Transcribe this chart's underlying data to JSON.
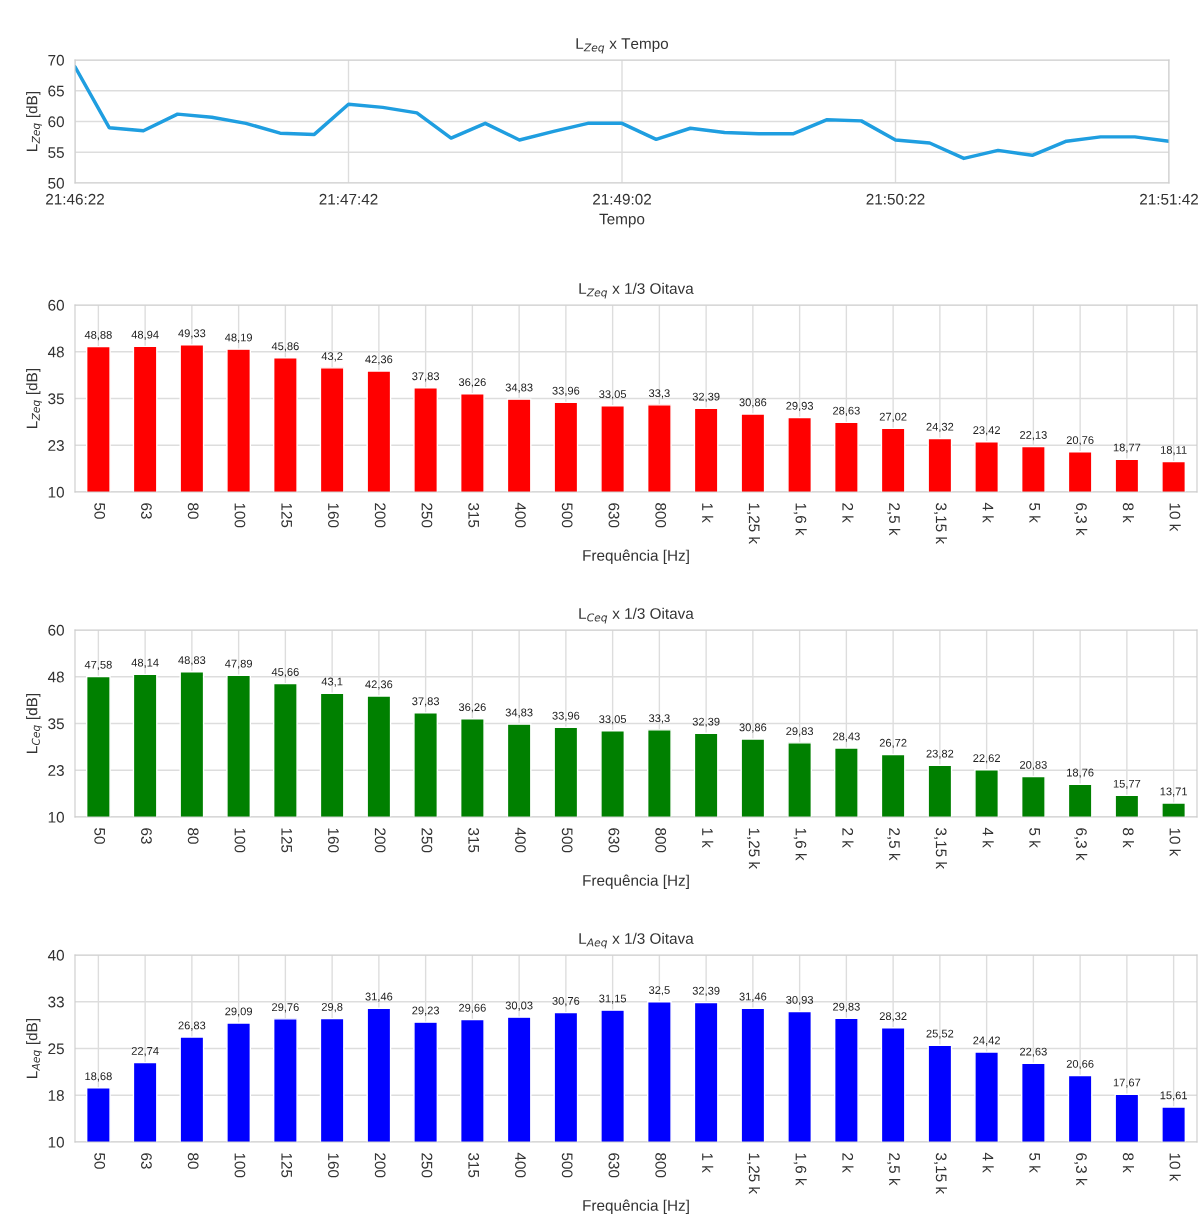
{
  "chart_data": [
    {
      "type": "line",
      "title": "L$_{Zeq}$ x Tempo",
      "xlabel": "Tempo",
      "ylabel": "L$_{Zeq}$ [dB]",
      "x": [
        78382,
        78392,
        78402,
        78412,
        78422,
        78432,
        78442,
        78452,
        78462,
        78472,
        78482,
        78492,
        78502,
        78512,
        78522,
        78532,
        78542,
        78552,
        78562,
        78572,
        78582,
        78592,
        78602,
        78612,
        78622,
        78632,
        78642,
        78652,
        78662,
        78672,
        78682,
        78692,
        78702
      ],
      "series": [
        {
          "color": "#1f9ee0",
          "values": [
            68.9,
            59.0,
            58.5,
            61.2,
            60.7,
            59.7,
            58.1,
            57.9,
            62.8,
            62.3,
            61.4,
            57.3,
            59.7,
            57.0,
            58.4,
            59.7,
            59.7,
            57.1,
            58.9,
            58.2,
            58.0,
            58.0,
            60.3,
            60.1,
            57.0,
            56.5,
            54.0,
            55.3,
            54.5,
            56.8,
            57.5,
            57.5,
            56.8
          ]
        }
      ],
      "xlim": [
        78382,
        78702
      ],
      "xticks": [
        {
          "value": 78382,
          "label": "21:46:22"
        },
        {
          "value": 78462,
          "label": "21:47:42"
        },
        {
          "value": 78542,
          "label": "21:49:02"
        },
        {
          "value": 78622,
          "label": "21:50:22"
        },
        {
          "value": 78702,
          "label": "21:51:42"
        }
      ],
      "ylim": [
        50,
        70
      ],
      "yticks": [
        50,
        55,
        60,
        65,
        70
      ],
      "grid": true,
      "marker": "none",
      "line_style": "solid"
    },
    {
      "type": "bar",
      "title": "L$_{Zeq}$ x 1/3 Oitava",
      "xlabel": "Frequência [Hz]",
      "ylabel": "L$_{Zeq}$ [dB]",
      "categories": [
        "50",
        "63",
        "80",
        "100",
        "125",
        "160",
        "200",
        "250",
        "315",
        "400",
        "500",
        "630",
        "800",
        "1 k",
        "1,25 k",
        "1,6 k",
        "2 k",
        "2,5 k",
        "3,15 k",
        "4 k",
        "5 k",
        "6,3 k",
        "8 k",
        "10 k"
      ],
      "values": [
        48.88,
        48.94,
        49.33,
        48.19,
        45.86,
        43.2,
        42.36,
        37.83,
        36.26,
        34.83,
        33.96,
        33.05,
        33.3,
        32.39,
        30.86,
        29.93,
        28.63,
        27.02,
        24.32,
        23.42,
        22.13,
        20.76,
        18.77,
        18.11
      ],
      "value_labels": [
        "48,88",
        "48,94",
        "49,33",
        "48,19",
        "45,86",
        "43,2",
        "42,36",
        "37,83",
        "36,26",
        "34,83",
        "33,96",
        "33,05",
        "33,3",
        "32,39",
        "30,86",
        "29,93",
        "28,63",
        "27,02",
        "24,32",
        "23,42",
        "22,13",
        "20,76",
        "18,77",
        "18,11"
      ],
      "color": "#ff0000",
      "ylim": [
        10,
        60
      ],
      "yticks": [
        10,
        {
          "value": 22.5,
          "label": "23"
        },
        35,
        {
          "value": 47.5,
          "label": "48"
        },
        60
      ],
      "grid": true
    },
    {
      "type": "bar",
      "title": "L$_{Ceq}$ x 1/3 Oitava",
      "xlabel": "Frequência [Hz]",
      "ylabel": "L$_{Ceq}$ [dB]",
      "categories": [
        "50",
        "63",
        "80",
        "100",
        "125",
        "160",
        "200",
        "250",
        "315",
        "400",
        "500",
        "630",
        "800",
        "1 k",
        "1,25 k",
        "1,6 k",
        "2 k",
        "2,5 k",
        "3,15 k",
        "4 k",
        "5 k",
        "6,3 k",
        "8 k",
        "10 k"
      ],
      "values": [
        47.58,
        48.14,
        48.83,
        47.89,
        45.66,
        43.1,
        42.36,
        37.83,
        36.26,
        34.83,
        33.96,
        33.05,
        33.3,
        32.39,
        30.86,
        29.83,
        28.43,
        26.72,
        23.82,
        22.62,
        20.83,
        18.76,
        15.77,
        13.71
      ],
      "value_labels": [
        "47,58",
        "48,14",
        "48,83",
        "47,89",
        "45,66",
        "43,1",
        "42,36",
        "37,83",
        "36,26",
        "34,83",
        "33,96",
        "33,05",
        "33,3",
        "32,39",
        "30,86",
        "29,83",
        "28,43",
        "26,72",
        "23,82",
        "22,62",
        "20,83",
        "18,76",
        "15,77",
        "13,71"
      ],
      "color": "#008000",
      "ylim": [
        10,
        60
      ],
      "yticks": [
        10,
        {
          "value": 22.5,
          "label": "23"
        },
        35,
        {
          "value": 47.5,
          "label": "48"
        },
        60
      ],
      "grid": true
    },
    {
      "type": "bar",
      "title": "L$_{Aeq}$ x 1/3 Oitava",
      "xlabel": "Frequência [Hz]",
      "ylabel": "L$_{Aeq}$ [dB]",
      "categories": [
        "50",
        "63",
        "80",
        "100",
        "125",
        "160",
        "200",
        "250",
        "315",
        "400",
        "500",
        "630",
        "800",
        "1 k",
        "1,25 k",
        "1,6 k",
        "2 k",
        "2,5 k",
        "3,15 k",
        "4 k",
        "5 k",
        "6,3 k",
        "8 k",
        "10 k"
      ],
      "values": [
        18.68,
        22.74,
        26.83,
        29.09,
        29.76,
        29.8,
        31.46,
        29.23,
        29.66,
        30.03,
        30.76,
        31.15,
        32.5,
        32.39,
        31.46,
        30.93,
        29.83,
        28.32,
        25.52,
        24.42,
        22.63,
        20.66,
        17.67,
        15.61
      ],
      "value_labels": [
        "18,68",
        "22,74",
        "26,83",
        "29,09",
        "29,76",
        "29,8",
        "31,46",
        "29,23",
        "29,66",
        "30,03",
        "30,76",
        "31,15",
        "32,5",
        "32,39",
        "31,46",
        "30,93",
        "29,83",
        "28,32",
        "25,52",
        "24,42",
        "22,63",
        "20,66",
        "17,67",
        "15,61"
      ],
      "color": "#0000ff",
      "ylim": [
        10,
        40
      ],
      "yticks": [
        10,
        {
          "value": 17.5,
          "label": "18"
        },
        25,
        {
          "value": 32.5,
          "label": "33"
        },
        40
      ],
      "grid": true
    }
  ]
}
